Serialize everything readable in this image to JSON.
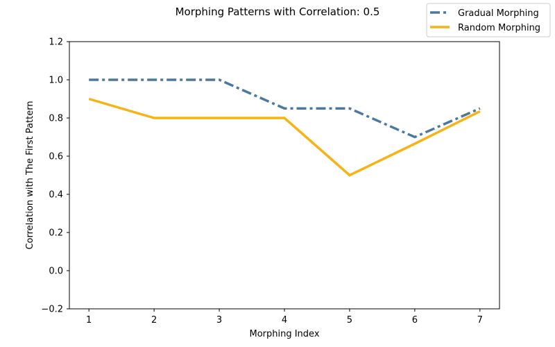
{
  "chart_data": {
    "type": "line",
    "title": "Morphing Patterns with Correlation: 0.5",
    "xlabel": "Morphing Index",
    "ylabel": "Correlation with The First Pattern",
    "x": [
      1,
      2,
      3,
      4,
      5,
      6,
      7
    ],
    "xlim": [
      0.7,
      7.3
    ],
    "ylim": [
      -0.2,
      1.2
    ],
    "xticks": [
      1,
      2,
      3,
      4,
      5,
      6,
      7
    ],
    "yticks": [
      -0.2,
      0.0,
      0.2,
      0.4,
      0.6,
      0.8,
      1.0,
      1.2
    ],
    "ytick_labels": [
      "−0.2",
      "0.0",
      "0.2",
      "0.4",
      "0.6",
      "0.8",
      "1.0",
      "1.2"
    ],
    "grid": false,
    "legend_position": "top-right",
    "series": [
      {
        "name": "Gradual Morphing",
        "values": [
          1.0,
          1.0,
          1.0,
          0.85,
          0.85,
          0.7,
          0.85
        ],
        "color": "#4c78a0",
        "style": "dash-dot"
      },
      {
        "name": "Random Morphing",
        "values": [
          0.9,
          0.8,
          0.8,
          0.8,
          0.5,
          0.665,
          0.835
        ],
        "color": "#f7b316",
        "style": "solid"
      }
    ]
  }
}
